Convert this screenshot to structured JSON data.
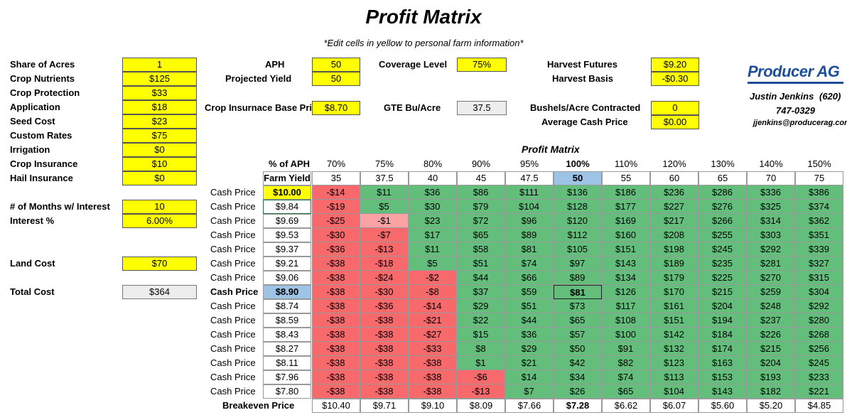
{
  "title": "Profit Matrix",
  "subtitle": "*Edit cells in yellow to personal farm information*",
  "costs": [
    {
      "label": "Share of Acres",
      "value": "1"
    },
    {
      "label": "Crop Nutrients",
      "value": "$125"
    },
    {
      "label": "Crop Protection",
      "value": "$33"
    },
    {
      "label": "Application",
      "value": "$18"
    },
    {
      "label": "Seed Cost",
      "value": "$23"
    },
    {
      "label": "Custom Rates",
      "value": "$75"
    },
    {
      "label": "Irrigation",
      "value": "$0"
    },
    {
      "label": "Crop Insurance",
      "value": "$10"
    },
    {
      "label": "Hail Insurance",
      "value": "$0"
    }
  ],
  "interest": {
    "months_label": "# of Months w/ Interest",
    "months_value": "10",
    "rate_label": "Interest %",
    "rate_value": "6.00%"
  },
  "land": {
    "label": "Land Cost",
    "value": "$70"
  },
  "total": {
    "label": "Total  Cost",
    "value": "$364"
  },
  "middle": {
    "aph_label": "APH",
    "aph_value": "50",
    "yield_label": "Projected Yield",
    "yield_value": "50",
    "base_label": "Crop Insurnace Base Price",
    "base_value": "$8.70",
    "coverage_label": "Coverage Level",
    "coverage_value": "75%",
    "gte_label": "GTE Bu/Acre",
    "gte_value": "37.5"
  },
  "right": {
    "futures_label": "Harvest Futures",
    "futures_value": "$9.20",
    "basis_label": "Harvest Basis",
    "basis_value": "-$0.30",
    "contracted_label": "Bushels/Acre Contracted",
    "contracted_value": "0",
    "avgcash_label": "Average Cash Price",
    "avgcash_value": "$0.00"
  },
  "contact": {
    "logo": "Producer AG",
    "name": "Justin Jenkins",
    "area": "(620)",
    "phone": "747-0329",
    "email": "jjenkins@producerag.com"
  },
  "matrix": {
    "title": "Profit Matrix",
    "pct_header": "% of APH",
    "yield_header": "Farm Yield",
    "cash_label": "Cash Price",
    "breakeven_label": "Breakeven Price",
    "pcts": [
      "70%",
      "75%",
      "80%",
      "90%",
      "95%",
      "100%",
      "110%",
      "120%",
      "130%",
      "140%",
      "150%"
    ],
    "yields": [
      "35",
      "37.5",
      "40",
      "45",
      "47.5",
      "50",
      "55",
      "60",
      "65",
      "70",
      "75"
    ],
    "prices": [
      "$10.00",
      "$9.84",
      "$9.69",
      "$9.53",
      "$9.37",
      "$9.21",
      "$9.06",
      "$8.90",
      "$8.74",
      "$8.59",
      "$8.43",
      "$8.27",
      "$8.11",
      "$7.96",
      "$7.80"
    ],
    "rows": [
      [
        "-$14",
        "$11",
        "$36",
        "$86",
        "$111",
        "$136",
        "$186",
        "$236",
        "$286",
        "$336",
        "$386"
      ],
      [
        "-$19",
        "$5",
        "$30",
        "$79",
        "$104",
        "$128",
        "$177",
        "$227",
        "$276",
        "$325",
        "$374"
      ],
      [
        "-$25",
        "-$1",
        "$23",
        "$72",
        "$96",
        "$120",
        "$169",
        "$217",
        "$266",
        "$314",
        "$362"
      ],
      [
        "-$30",
        "-$7",
        "$17",
        "$65",
        "$89",
        "$112",
        "$160",
        "$208",
        "$255",
        "$303",
        "$351"
      ],
      [
        "-$36",
        "-$13",
        "$11",
        "$58",
        "$81",
        "$105",
        "$151",
        "$198",
        "$245",
        "$292",
        "$339"
      ],
      [
        "-$38",
        "-$18",
        "$5",
        "$51",
        "$74",
        "$97",
        "$143",
        "$189",
        "$235",
        "$281",
        "$327"
      ],
      [
        "-$38",
        "-$24",
        "-$2",
        "$44",
        "$66",
        "$89",
        "$134",
        "$179",
        "$225",
        "$270",
        "$315"
      ],
      [
        "-$38",
        "-$30",
        "-$8",
        "$37",
        "$59",
        "$81",
        "$126",
        "$170",
        "$215",
        "$259",
        "$304"
      ],
      [
        "-$38",
        "-$36",
        "-$14",
        "$29",
        "$51",
        "$73",
        "$117",
        "$161",
        "$204",
        "$248",
        "$292"
      ],
      [
        "-$38",
        "-$38",
        "-$21",
        "$22",
        "$44",
        "$65",
        "$108",
        "$151",
        "$194",
        "$237",
        "$280"
      ],
      [
        "-$38",
        "-$38",
        "-$27",
        "$15",
        "$36",
        "$57",
        "$100",
        "$142",
        "$184",
        "$226",
        "$268"
      ],
      [
        "-$38",
        "-$38",
        "-$33",
        "$8",
        "$29",
        "$50",
        "$91",
        "$132",
        "$174",
        "$215",
        "$256"
      ],
      [
        "-$38",
        "-$38",
        "-$38",
        "$1",
        "$21",
        "$42",
        "$82",
        "$123",
        "$163",
        "$204",
        "$245"
      ],
      [
        "-$38",
        "-$38",
        "-$38",
        "-$6",
        "$14",
        "$34",
        "$74",
        "$113",
        "$153",
        "$193",
        "$233"
      ],
      [
        "-$38",
        "-$38",
        "-$38",
        "-$13",
        "$7",
        "$26",
        "$65",
        "$104",
        "$143",
        "$182",
        "$221"
      ]
    ],
    "breakeven": [
      "$10.40",
      "$9.71",
      "$9.10",
      "$8.09",
      "$7.66",
      "$7.28",
      "$6.62",
      "$6.07",
      "$5.60",
      "$5.20",
      "$4.85"
    ]
  },
  "colors": {
    "yellow": "#ffff00",
    "green": "#63be7b",
    "red": "#f8696b",
    "light_red": "#fba3a4",
    "blue_highlight": "#9dc3e6",
    "logo_blue": "#1f4e9b"
  }
}
